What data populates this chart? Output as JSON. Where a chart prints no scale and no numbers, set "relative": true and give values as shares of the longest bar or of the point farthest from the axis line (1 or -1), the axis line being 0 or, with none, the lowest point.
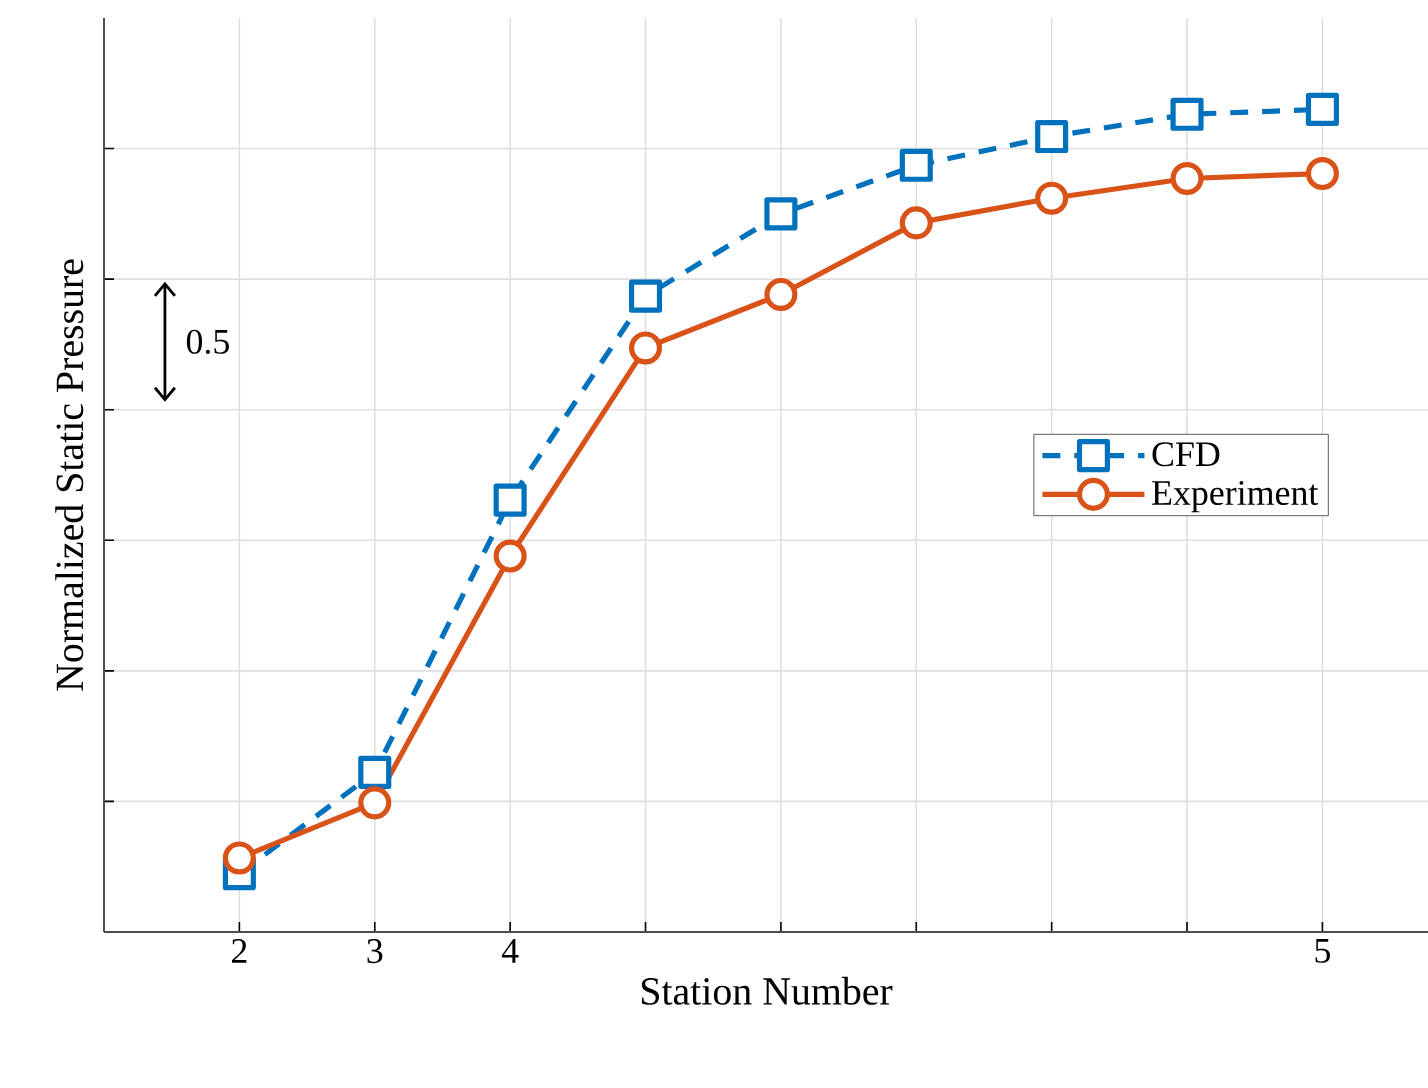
{
  "chart_data": {
    "type": "line",
    "xlabel": "Station Number",
    "ylabel": "Normalized Static Pressure",
    "categories": [
      "2",
      "3",
      "4",
      null,
      null,
      null,
      null,
      null,
      "5"
    ],
    "relative": true,
    "grid": true,
    "legend": "right",
    "annotations": [
      "0.5"
    ],
    "series": [
      {
        "name": "CFD",
        "color": "#0072bd",
        "marker": "square",
        "line_style": "dashed",
        "values": [
          0.071,
          0.194,
          0.525,
          0.773,
          0.873,
          0.932,
          0.967,
          0.994,
          1
        ]
      },
      {
        "name": "Experiment",
        "color": "#d95319",
        "marker": "circle",
        "line_style": "solid",
        "values": [
          0.09,
          0.157,
          0.457,
          0.71,
          0.775,
          0.862,
          0.892,
          0.916,
          0.922
        ]
      }
    ]
  }
}
